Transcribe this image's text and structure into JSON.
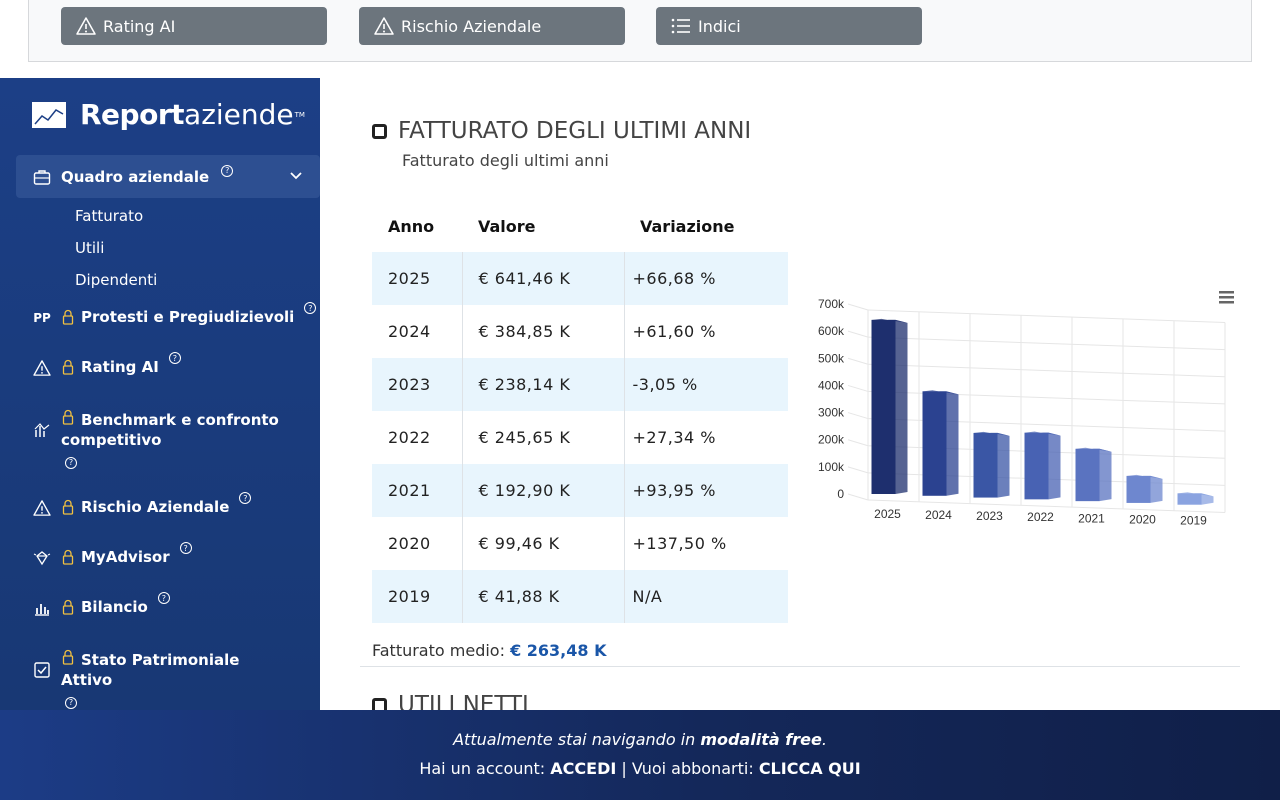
{
  "top_buttons": [
    {
      "label": "Rating AI",
      "icon": "warning-icon"
    },
    {
      "label": "Rischio Aziendale",
      "icon": "warning-icon"
    },
    {
      "label": "Indici",
      "icon": "list-icon"
    }
  ],
  "sidebar": {
    "logo_bold": "Report",
    "logo_light": "aziende",
    "logo_tm": "TM",
    "active_item": {
      "label": "Quadro aziendale",
      "icon": "briefcase-icon",
      "help": "?"
    },
    "sub_items": [
      "Fatturato",
      "Utili",
      "Dipendenti"
    ],
    "items": [
      {
        "label": "Protesti e Pregiudizievoli",
        "icon_text": "PP",
        "icon": "pp-icon",
        "locked": true
      },
      {
        "label": "Rating AI",
        "icon": "warning-icon",
        "locked": true
      },
      {
        "label": "Benchmark e confronto competitivo",
        "icon": "benchmark-icon",
        "locked": true
      },
      {
        "label": "Rischio Aziendale",
        "icon": "warning-icon",
        "locked": true
      },
      {
        "label": "MyAdvisor",
        "icon": "gem-icon",
        "locked": true
      },
      {
        "label": "Bilancio",
        "icon": "bar-chart-icon",
        "locked": true
      },
      {
        "label": "Stato Patrimoniale Attivo",
        "icon": "check-square-icon",
        "locked": true
      }
    ],
    "help_symbol": "?"
  },
  "section": {
    "title": "FATTURATO DEGLI ULTIMI ANNI",
    "subtitle": "Fatturato degli ultimi anni",
    "table": {
      "headers": [
        "Anno",
        "Valore",
        "Variazione"
      ],
      "rows": [
        {
          "year": "2025",
          "value": "€ 641,46 K",
          "change": "+66,68 %",
          "trend": "pos"
        },
        {
          "year": "2024",
          "value": "€ 384,85 K",
          "change": "+61,60 %",
          "trend": "pos"
        },
        {
          "year": "2023",
          "value": "€ 238,14 K",
          "change": "-3,05 %",
          "trend": "neg"
        },
        {
          "year": "2022",
          "value": "€ 245,65 K",
          "change": "+27,34 %",
          "trend": "pos"
        },
        {
          "year": "2021",
          "value": "€ 192,90 K",
          "change": "+93,95 %",
          "trend": "pos"
        },
        {
          "year": "2020",
          "value": "€ 99,46 K",
          "change": "+137,50 %",
          "trend": "pos"
        },
        {
          "year": "2019",
          "value": "€ 41,88 K",
          "change": "N/A",
          "trend": "none"
        }
      ]
    },
    "average_label": "Fatturato medio:",
    "average_value": "€ 263,48 K",
    "next_title": "UTILI NETTI"
  },
  "chart_data": {
    "type": "bar",
    "categories": [
      "2025",
      "2024",
      "2023",
      "2022",
      "2021",
      "2020",
      "2019"
    ],
    "values": [
      641.46,
      384.85,
      238.14,
      245.65,
      192.9,
      99.46,
      41.88
    ],
    "yticks": [
      "0",
      "100k",
      "200k",
      "300k",
      "400k",
      "500k",
      "600k",
      "700k"
    ],
    "ylim": [
      0,
      700
    ],
    "title": "",
    "xlabel": "",
    "ylabel": "",
    "grid": true,
    "colors": [
      "#1e2f6e",
      "#2b4290",
      "#3a56a5",
      "#4862b3",
      "#5a73c0",
      "#6e87cf",
      "#8aa3e0"
    ],
    "menu_icon": "hamburger-icon"
  },
  "footer": {
    "line1_prefix": "Attualmente stai navigando in ",
    "line1_bold": "modalità free",
    "line1_suffix": ".",
    "line2_prefix": "Hai un account: ",
    "login": "ACCEDI",
    "sep": " | Vuoi abbonarti: ",
    "subscribe": "CLICCA QUI"
  }
}
